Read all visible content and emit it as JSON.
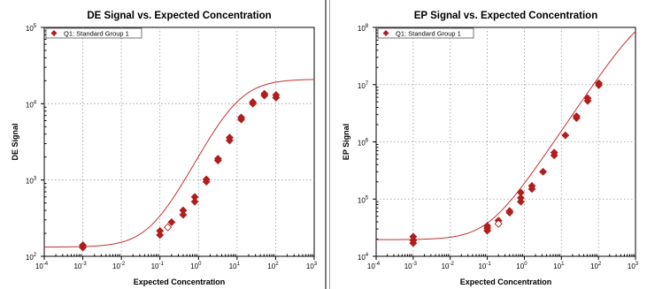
{
  "colors": {
    "marker": "#b01e1e",
    "curve": "#c33333",
    "outlier_marker_fill": "#ffffff"
  },
  "chart_data": [
    {
      "type": "scatter",
      "title": "DE Signal vs. Expected Concentration",
      "xlabel": "Expected Concentration",
      "ylabel": "DE Signal",
      "xscale": "log",
      "yscale": "log",
      "xlim": [
        0.0001,
        1000
      ],
      "ylim": [
        100,
        100000
      ],
      "x_ticks": [
        {
          "base": "10",
          "exp": "-4"
        },
        {
          "base": "10",
          "exp": "-3"
        },
        {
          "base": "10",
          "exp": "-2"
        },
        {
          "base": "10",
          "exp": "-1"
        },
        {
          "base": "10",
          "exp": "0"
        },
        {
          "base": "10",
          "exp": "1"
        },
        {
          "base": "10",
          "exp": "2"
        },
        {
          "base": "10",
          "exp": "3"
        }
      ],
      "y_ticks": [
        {
          "base": "10",
          "exp": "2"
        },
        {
          "base": "10",
          "exp": "3"
        },
        {
          "base": "10",
          "exp": "4"
        },
        {
          "base": "10",
          "exp": "5"
        }
      ],
      "grid": true,
      "legend": {
        "position": "top-left",
        "entries": [
          "Q1: Standard Group 1"
        ]
      },
      "series": [
        {
          "name": "Q1: Standard Group 1",
          "marker": "diamond",
          "points": [
            {
              "x": 0.001,
              "y": 130
            },
            {
              "x": 0.001,
              "y": 140
            },
            {
              "x": 0.1,
              "y": 190
            },
            {
              "x": 0.1,
              "y": 215
            },
            {
              "x": 0.2,
              "y": 280
            },
            {
              "x": 0.4,
              "y": 350
            },
            {
              "x": 0.4,
              "y": 400
            },
            {
              "x": 0.8,
              "y": 520
            },
            {
              "x": 0.8,
              "y": 600
            },
            {
              "x": 1.6,
              "y": 950
            },
            {
              "x": 1.6,
              "y": 1020
            },
            {
              "x": 3.2,
              "y": 1800
            },
            {
              "x": 3.2,
              "y": 1900
            },
            {
              "x": 6.4,
              "y": 3300
            },
            {
              "x": 6.4,
              "y": 3600
            },
            {
              "x": 12.8,
              "y": 6200
            },
            {
              "x": 12.8,
              "y": 6600
            },
            {
              "x": 25.6,
              "y": 10000
            },
            {
              "x": 25.6,
              "y": 10500
            },
            {
              "x": 51.2,
              "y": 12800
            },
            {
              "x": 51.2,
              "y": 13500
            },
            {
              "x": 102.4,
              "y": 12000
            },
            {
              "x": 102.4,
              "y": 13000
            }
          ],
          "outlier_points": [
            {
              "x": 0.16,
              "y": 240
            }
          ]
        }
      ],
      "fit_curve": {
        "model": "4PL",
        "bottom": 132,
        "top": 21000,
        "ec50": 10,
        "hill": 1.0
      }
    },
    {
      "type": "scatter",
      "title": "EP Signal vs. Expected Concentration",
      "xlabel": "Expected Concentration",
      "ylabel": "EP Signal",
      "xscale": "log",
      "yscale": "log",
      "xlim": [
        0.0001,
        1000
      ],
      "ylim": [
        10000,
        100000000
      ],
      "x_ticks": [
        {
          "base": "10",
          "exp": "-4"
        },
        {
          "base": "10",
          "exp": "-3"
        },
        {
          "base": "10",
          "exp": "-2"
        },
        {
          "base": "10",
          "exp": "-1"
        },
        {
          "base": "10",
          "exp": "0"
        },
        {
          "base": "10",
          "exp": "1"
        },
        {
          "base": "10",
          "exp": "2"
        },
        {
          "base": "10",
          "exp": "3"
        }
      ],
      "y_ticks": [
        {
          "base": "10",
          "exp": "4"
        },
        {
          "base": "10",
          "exp": "5"
        },
        {
          "base": "10",
          "exp": "6"
        },
        {
          "base": "10",
          "exp": "7"
        },
        {
          "base": "10",
          "exp": "8"
        }
      ],
      "grid": true,
      "legend": {
        "position": "top-left",
        "entries": [
          "Q1: Standard Group 1"
        ]
      },
      "series": [
        {
          "name": "Q1: Standard Group 1",
          "marker": "diamond",
          "points": [
            {
              "x": 0.001,
              "y": 17000
            },
            {
              "x": 0.001,
              "y": 19000
            },
            {
              "x": 0.001,
              "y": 22000
            },
            {
              "x": 0.1,
              "y": 28000
            },
            {
              "x": 0.1,
              "y": 31000
            },
            {
              "x": 0.1,
              "y": 34000
            },
            {
              "x": 0.2,
              "y": 42000
            },
            {
              "x": 0.4,
              "y": 58000
            },
            {
              "x": 0.4,
              "y": 62000
            },
            {
              "x": 0.8,
              "y": 90000
            },
            {
              "x": 0.8,
              "y": 105000
            },
            {
              "x": 0.8,
              "y": 130000
            },
            {
              "x": 1.6,
              "y": 150000
            },
            {
              "x": 1.6,
              "y": 170000
            },
            {
              "x": 3.2,
              "y": 300000
            },
            {
              "x": 6.4,
              "y": 580000
            },
            {
              "x": 6.4,
              "y": 650000
            },
            {
              "x": 12.8,
              "y": 1300000
            },
            {
              "x": 25.6,
              "y": 2600000
            },
            {
              "x": 25.6,
              "y": 2800000
            },
            {
              "x": 51.2,
              "y": 5200000
            },
            {
              "x": 51.2,
              "y": 5800000
            },
            {
              "x": 102.4,
              "y": 9800000
            },
            {
              "x": 102.4,
              "y": 10600000
            }
          ],
          "outlier_points": [
            {
              "x": 0.2,
              "y": 37000
            }
          ]
        }
      ],
      "fit_curve": {
        "model": "4PL",
        "bottom": 19500,
        "top": 250000000,
        "ec50": 2000,
        "hill": 0.96
      }
    }
  ]
}
